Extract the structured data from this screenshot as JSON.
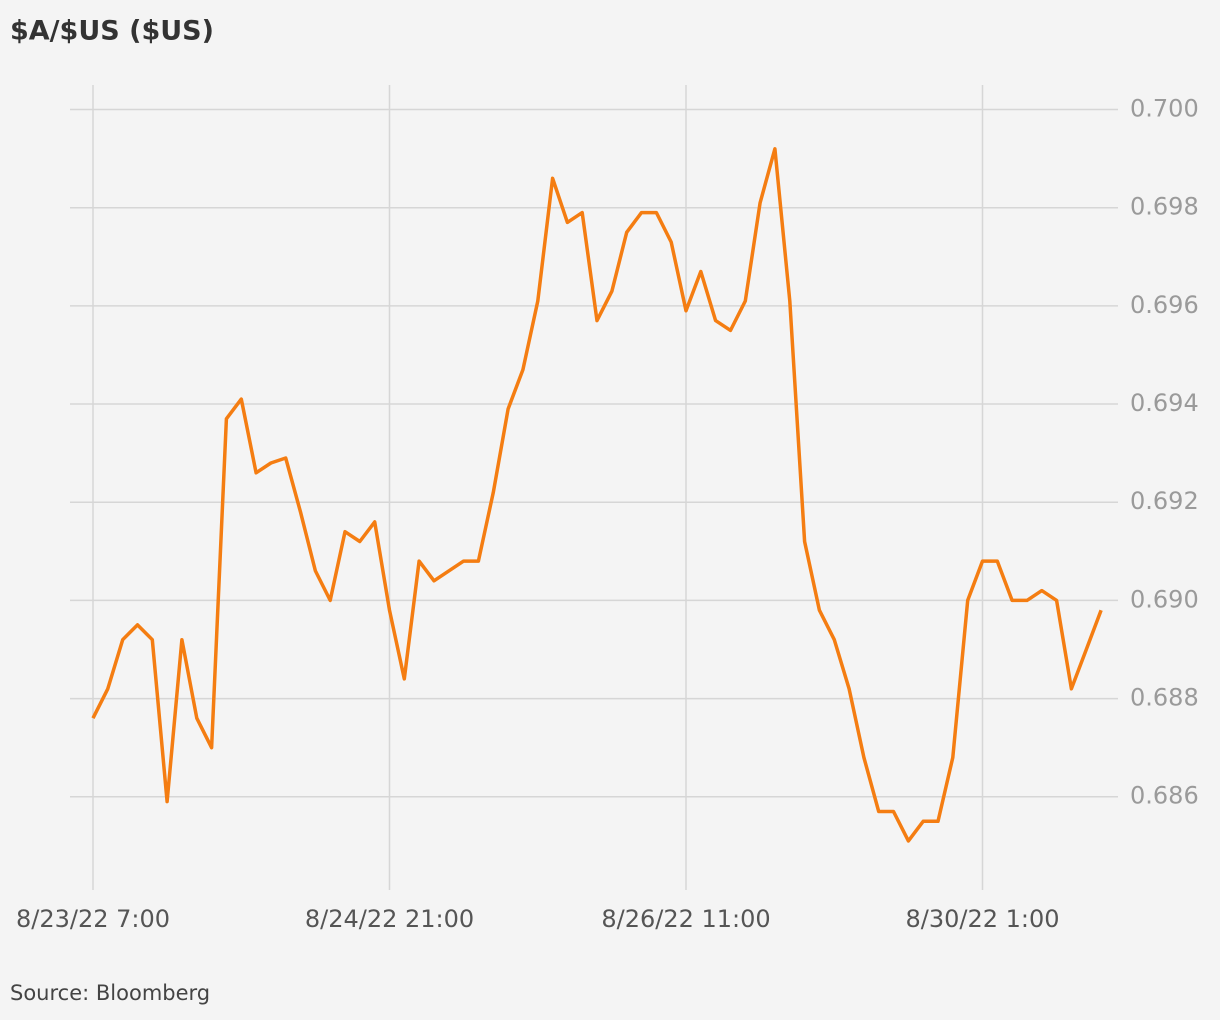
{
  "chart_data": {
    "type": "line",
    "title": "$A/$US ($US)",
    "source": "Source: Bloomberg",
    "categories": [
      "8/23/22 7:00",
      null,
      null,
      null,
      null,
      null,
      null,
      null,
      null,
      null,
      null,
      null,
      null,
      null,
      null,
      null,
      null,
      null,
      null,
      null,
      "8/24/22 21:00",
      null,
      null,
      null,
      null,
      null,
      null,
      null,
      null,
      null,
      null,
      null,
      null,
      null,
      null,
      null,
      null,
      null,
      null,
      null,
      "8/26/22 11:00",
      null,
      null,
      null,
      null,
      null,
      null,
      null,
      null,
      null,
      null,
      null,
      null,
      null,
      null,
      null,
      null,
      null,
      null,
      null,
      "8/30/22 1:00",
      null,
      null,
      null,
      null,
      null,
      null,
      null,
      null
    ],
    "series": [
      {
        "name": "$A/$US",
        "color": "#f47d12",
        "values": [
          0.6876,
          0.6882,
          0.6892,
          0.6895,
          0.6892,
          0.6859,
          0.6892,
          0.6876,
          0.687,
          0.6937,
          0.6941,
          0.6926,
          0.6928,
          0.6929,
          0.6918,
          0.6906,
          0.69,
          0.6914,
          0.6912,
          0.6916,
          0.6898,
          0.6884,
          0.6908,
          0.6904,
          0.6906,
          0.6908,
          0.6908,
          0.6922,
          0.6939,
          0.6947,
          0.6961,
          0.6986,
          0.6977,
          0.6979,
          0.6957,
          0.6963,
          0.6975,
          0.6979,
          0.6979,
          0.6973,
          0.6959,
          0.6967,
          0.6957,
          0.6955,
          0.6961,
          0.6981,
          0.6992,
          0.6961,
          0.6912,
          0.6898,
          0.6892,
          0.6882,
          0.6868,
          0.6857,
          0.6857,
          0.6851,
          0.6855,
          0.6855,
          0.6868,
          0.69,
          0.6908,
          0.6908,
          0.69,
          0.69,
          0.6902,
          0.69,
          0.6882,
          0.689,
          0.6898
        ]
      }
    ],
    "ylim": [
      0.6841,
      0.7005
    ],
    "yticks": [
      0.686,
      0.688,
      {
        "value": 0.69,
        "label": "0.690"
      },
      0.692,
      0.694,
      0.696,
      0.698,
      {
        "value": 0.7,
        "label": "0.700"
      }
    ],
    "grid": true
  }
}
